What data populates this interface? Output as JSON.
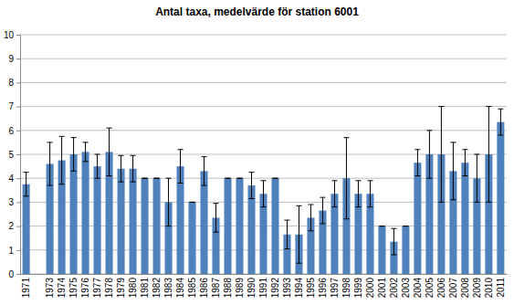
{
  "chart_data": {
    "type": "bar",
    "title": "Antal taxa, medelvärde för station 6001",
    "categories": [
      "1971",
      null,
      "1973",
      "1974",
      "1975",
      "1976",
      "1977",
      "1978",
      "1979",
      "1980",
      "1981",
      "1982",
      "1983",
      "1984",
      "1985",
      "1986",
      "1987",
      "1988",
      "1989",
      "1990",
      "1991",
      "1992",
      "1993",
      "1994",
      "1995",
      "1996",
      "1997",
      "1998",
      "1999",
      "2000",
      "2001",
      "2002",
      "2003",
      "2004",
      "2005",
      "2006",
      "2007",
      "2008",
      "2009",
      "2010",
      "2011"
    ],
    "values": [
      3.75,
      null,
      4.6,
      4.75,
      5.0,
      5.1,
      4.5,
      5.1,
      4.4,
      4.4,
      4.0,
      4.0,
      3.0,
      4.5,
      3.0,
      4.3,
      2.35,
      4.0,
      4.0,
      3.7,
      3.35,
      4.0,
      1.65,
      1.65,
      2.35,
      2.65,
      3.35,
      4.0,
      3.35,
      3.35,
      2.0,
      1.35,
      2.0,
      4.65,
      5.0,
      5.0,
      4.3,
      4.65,
      4.0,
      5.0,
      6.35
    ],
    "errors": [
      0.5,
      null,
      0.9,
      1.0,
      0.7,
      0.4,
      0.5,
      1.0,
      0.55,
      0.55,
      0,
      0,
      1.0,
      0.7,
      0,
      0.6,
      0.6,
      0,
      0,
      0.55,
      0.55,
      0,
      0.6,
      1.2,
      0.55,
      0.55,
      0.55,
      1.7,
      0.55,
      0.55,
      0,
      0.55,
      0,
      0.55,
      1.0,
      2.0,
      1.2,
      0.55,
      1.0,
      2.0,
      0.55
    ],
    "color": "#4f81bd",
    "ylim": [
      0,
      10
    ],
    "yticks": [
      0,
      1,
      2,
      3,
      4,
      5,
      6,
      7,
      8,
      9,
      10
    ],
    "grid": true
  }
}
